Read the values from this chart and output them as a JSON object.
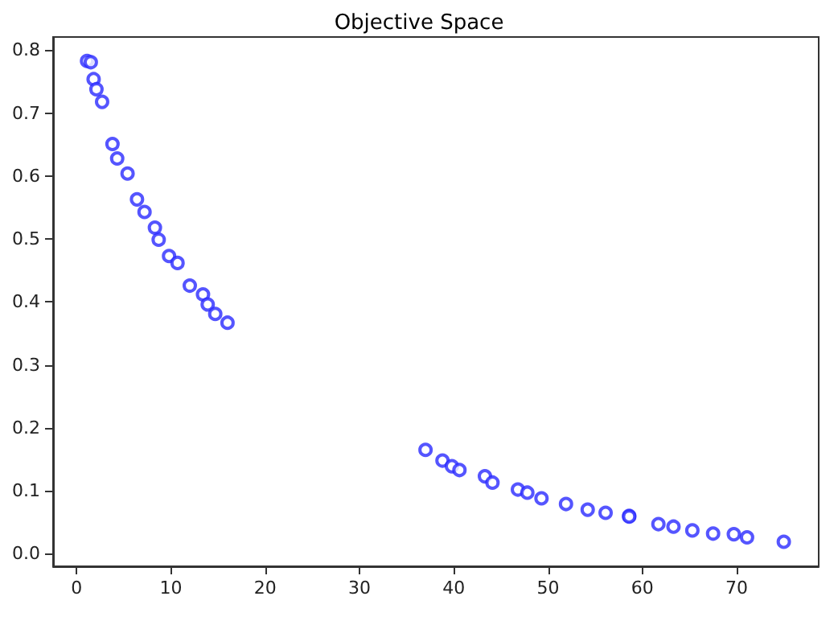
{
  "chart_data": {
    "type": "scatter",
    "title": "Objective Space",
    "marker": "circle",
    "grid": false,
    "x": [
      1.1,
      1.5,
      1.8,
      2.1,
      2.7,
      3.8,
      4.3,
      5.4,
      6.4,
      7.2,
      8.3,
      8.7,
      9.8,
      10.7,
      12.0,
      13.4,
      13.9,
      14.7,
      16.0,
      37.0,
      38.8,
      39.8,
      40.6,
      43.3,
      44.1,
      46.8,
      47.8,
      49.3,
      51.9,
      54.2,
      56.1,
      58.6,
      58.6,
      61.7,
      63.3,
      65.3,
      67.5,
      69.7,
      71.1,
      75.0
    ],
    "series": [
      {
        "color": "#2a2aff",
        "values": [
          0.783,
          0.781,
          0.754,
          0.738,
          0.718,
          0.651,
          0.628,
          0.604,
          0.563,
          0.543,
          0.518,
          0.499,
          0.473,
          0.462,
          0.426,
          0.412,
          0.396,
          0.381,
          0.367,
          0.165,
          0.148,
          0.139,
          0.133,
          0.123,
          0.113,
          0.102,
          0.097,
          0.088,
          0.079,
          0.07,
          0.065,
          0.06,
          0.059,
          0.047,
          0.043,
          0.037,
          0.032,
          0.031,
          0.026,
          0.019
        ]
      }
    ],
    "xlim": [
      -2.5,
      78.7
    ],
    "ylim": [
      -0.02,
      0.821
    ],
    "xticks": [
      0,
      10,
      20,
      30,
      40,
      50,
      60,
      70
    ],
    "yticks": [
      {
        "value": 0,
        "label": "0.0"
      },
      {
        "value": 0.1,
        "label": "0.1"
      },
      {
        "value": 0.2,
        "label": "0.2"
      },
      {
        "value": 0.3,
        "label": "0.3"
      },
      {
        "value": 0.4,
        "label": "0.4"
      },
      {
        "value": 0.5,
        "label": "0.5"
      },
      {
        "value": 0.6,
        "label": "0.6"
      },
      {
        "value": 0.7,
        "label": "0.7"
      },
      {
        "value": 0.8,
        "label": "0.8"
      }
    ]
  }
}
